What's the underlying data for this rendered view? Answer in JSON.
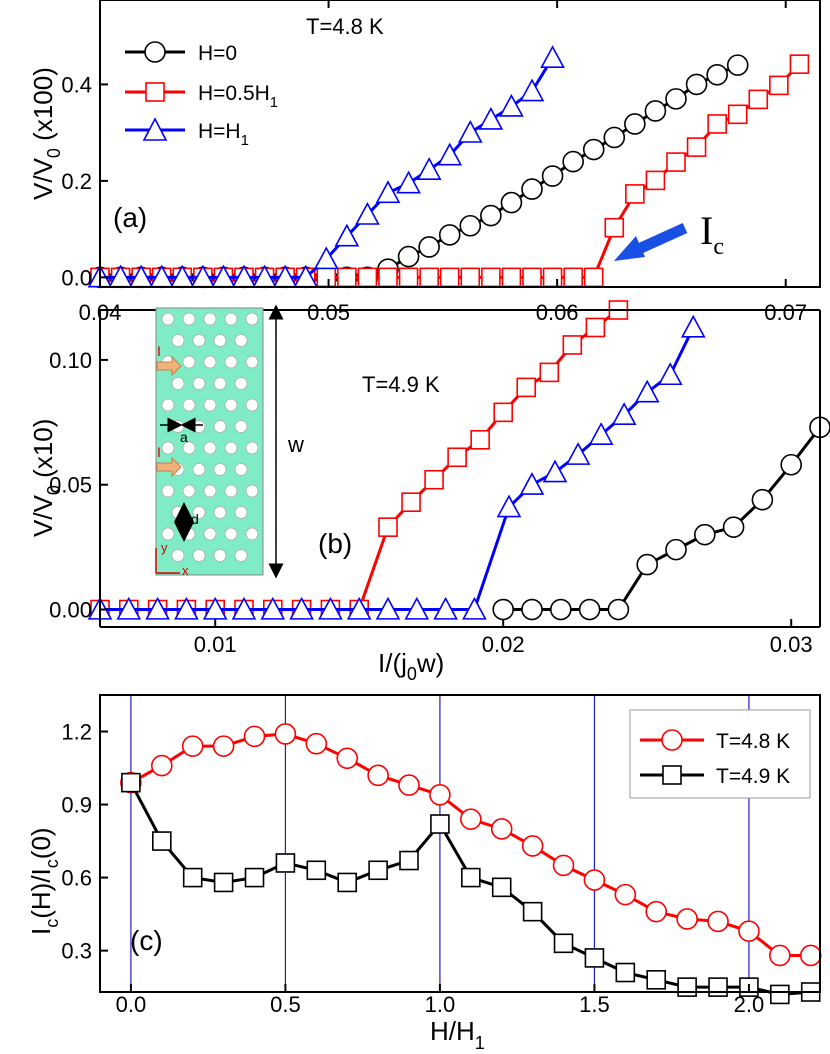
{
  "chart_data": [
    {
      "id": "panel-a",
      "type": "line",
      "panel_label": "(a)",
      "annotation": "T=4.8 K",
      "ylabel": "V/V0 (x100)",
      "xlabel": "I/(j0w)",
      "xlim": [
        0.04,
        0.0715
      ],
      "ylim": [
        -0.02,
        0.575
      ],
      "xticks": [
        0.04,
        0.05,
        0.06,
        0.07
      ],
      "xtick_labels": [
        "0.04",
        "0.05",
        "0.06",
        "0.07"
      ],
      "yticks": [
        0.0,
        0.2,
        0.4
      ],
      "ytick_labels": [
        "0.0",
        "0.2",
        "0.4"
      ],
      "arrow_label": "Ic",
      "arrow_target": {
        "x": 0.0622,
        "y": 0.0
      },
      "series": [
        {
          "name": "H=0",
          "color": "#000000",
          "marker": "circle",
          "x": [
            0.04,
            0.0409,
            0.0418,
            0.0427,
            0.0436,
            0.0445,
            0.0454,
            0.0463,
            0.0472,
            0.0481,
            0.049,
            0.0499,
            0.0508,
            0.0517,
            0.0526,
            0.0535,
            0.0544,
            0.0553,
            0.0562,
            0.0571,
            0.058,
            0.0589,
            0.0598,
            0.0607,
            0.0616,
            0.0625,
            0.0634,
            0.0643,
            0.0652,
            0.0661,
            0.067,
            0.0679
          ],
          "y": [
            0,
            0,
            0,
            0,
            0,
            0,
            0,
            0,
            0,
            0,
            0,
            0,
            0,
            0,
            0.017,
            0.043,
            0.063,
            0.088,
            0.107,
            0.128,
            0.155,
            0.183,
            0.21,
            0.24,
            0.265,
            0.29,
            0.318,
            0.345,
            0.37,
            0.4,
            0.42,
            0.44
          ]
        },
        {
          "name": "H=0.5H1",
          "color": "#ff0000",
          "marker": "square",
          "x": [
            0.04,
            0.0409,
            0.0418,
            0.0427,
            0.0436,
            0.0445,
            0.0454,
            0.0463,
            0.0472,
            0.0481,
            0.049,
            0.0499,
            0.0508,
            0.0517,
            0.0526,
            0.0535,
            0.0544,
            0.0553,
            0.0562,
            0.0571,
            0.058,
            0.0589,
            0.0598,
            0.0607,
            0.0616,
            0.0625,
            0.0634,
            0.0643,
            0.0652,
            0.0661,
            0.067,
            0.0679,
            0.0688,
            0.0697,
            0.0706
          ],
          "y": [
            0,
            0,
            0,
            0,
            0,
            0,
            0,
            0,
            0,
            0,
            0,
            0,
            0,
            0,
            0,
            0,
            0,
            0,
            0,
            0,
            0,
            0,
            0,
            0,
            0,
            0.103,
            0.173,
            0.201,
            0.239,
            0.27,
            0.318,
            0.338,
            0.369,
            0.398,
            0.442
          ]
        },
        {
          "name": "H=H1",
          "color": "#0000ff",
          "marker": "triangle",
          "x": [
            0.04,
            0.0409,
            0.0418,
            0.0427,
            0.0436,
            0.0445,
            0.0454,
            0.0463,
            0.0472,
            0.0481,
            0.049,
            0.0499,
            0.0508,
            0.0517,
            0.0526,
            0.0535,
            0.0544,
            0.0553,
            0.0562,
            0.0571,
            0.058,
            0.0589,
            0.0598
          ],
          "y": [
            0,
            0,
            0,
            0,
            0,
            0,
            0,
            0,
            0,
            0,
            0,
            0.038,
            0.085,
            0.13,
            0.175,
            0.195,
            0.223,
            0.253,
            0.3,
            0.327,
            0.354,
            0.386,
            0.455
          ]
        }
      ],
      "legend": [
        "H=0",
        "H=0.5H1",
        "H=H1"
      ]
    },
    {
      "id": "panel-b",
      "type": "line",
      "panel_label": "(b)",
      "annotation": "T=4.9 K",
      "ylabel": "V/V0 (x10)",
      "xlabel": "I/(j0w)",
      "xlim": [
        0.006,
        0.031
      ],
      "ylim": [
        -0.007,
        0.12
      ],
      "xticks": [
        0.01,
        0.02,
        0.03
      ],
      "xtick_labels": [
        "0.01",
        "0.02",
        "0.03"
      ],
      "yticks": [
        0.0,
        0.05,
        0.1
      ],
      "ytick_labels": [
        "0.00",
        "0.05",
        "0.10"
      ],
      "series": [
        {
          "name": "H=0",
          "color": "#000000",
          "marker": "circle",
          "x": [
            0.02,
            0.021,
            0.022,
            0.023,
            0.024,
            0.025,
            0.026,
            0.027,
            0.028,
            0.029,
            0.03,
            0.031
          ],
          "y": [
            0,
            0,
            0,
            0,
            0,
            0.018,
            0.024,
            0.03,
            0.033,
            0.044,
            0.058,
            0.073
          ]
        },
        {
          "name": "H=0.5H1",
          "color": "#ff0000",
          "marker": "square",
          "x": [
            0.006,
            0.007,
            0.008,
            0.009,
            0.01,
            0.011,
            0.012,
            0.013,
            0.014,
            0.015,
            0.016,
            0.0168,
            0.0176,
            0.0184,
            0.0192,
            0.02,
            0.0208,
            0.0216,
            0.0224,
            0.0232,
            0.024
          ],
          "y": [
            0,
            0,
            0,
            0,
            0,
            0,
            0,
            0,
            0,
            0,
            0.033,
            0.043,
            0.052,
            0.061,
            0.068,
            0.079,
            0.089,
            0.095,
            0.106,
            0.113,
            0.12
          ]
        },
        {
          "name": "H=H1",
          "color": "#0000ff",
          "marker": "triangle",
          "x": [
            0.006,
            0.007,
            0.008,
            0.009,
            0.01,
            0.011,
            0.012,
            0.013,
            0.014,
            0.015,
            0.016,
            0.017,
            0.018,
            0.019,
            0.0202,
            0.021,
            0.0218,
            0.0226,
            0.0234,
            0.0242,
            0.025,
            0.0258,
            0.0266
          ],
          "y": [
            0,
            0,
            0,
            0,
            0,
            0,
            0,
            0,
            0,
            0,
            0,
            0,
            0,
            0,
            0.041,
            0.05,
            0.055,
            0.062,
            0.07,
            0.078,
            0.087,
            0.094,
            0.113
          ]
        }
      ],
      "inset": {
        "label_w": "w",
        "label_a": "a",
        "label_d": "d",
        "label_I": "I",
        "label_x": "x",
        "label_y": "y",
        "fill": "#7fecc5"
      }
    },
    {
      "id": "panel-c",
      "type": "line",
      "panel_label": "(c)",
      "xlabel": "H/H1",
      "ylabel": "Ic(H)/Ic(0)",
      "xlim": [
        -0.1,
        2.23
      ],
      "ylim": [
        0.13,
        1.35
      ],
      "xticks": [
        0.0,
        0.5,
        1.0,
        1.5,
        2.0
      ],
      "xtick_labels": [
        "0.0",
        "0.5",
        "1.0",
        "1.5",
        "2.0"
      ],
      "yticks": [
        0.3,
        0.6,
        0.9,
        1.2
      ],
      "ytick_labels": [
        "0.3",
        "0.6",
        "0.9",
        "1.2"
      ],
      "vlines": [
        0.0,
        0.5,
        1.0,
        1.5,
        2.0
      ],
      "series": [
        {
          "name": "T=4.8 K",
          "color": "#ff0000",
          "marker": "circle",
          "x": [
            0.0,
            0.1,
            0.2,
            0.3,
            0.4,
            0.5,
            0.6,
            0.7,
            0.8,
            0.9,
            1.0,
            1.1,
            1.2,
            1.3,
            1.4,
            1.5,
            1.6,
            1.7,
            1.8,
            1.9,
            2.0,
            2.1,
            2.2
          ],
          "y": [
            0.99,
            1.06,
            1.14,
            1.14,
            1.18,
            1.19,
            1.15,
            1.09,
            1.02,
            0.98,
            0.94,
            0.84,
            0.8,
            0.73,
            0.65,
            0.59,
            0.53,
            0.46,
            0.43,
            0.42,
            0.38,
            0.28,
            0.28
          ]
        },
        {
          "name": "T=4.9 K",
          "color": "#000000",
          "marker": "square",
          "x": [
            0.0,
            0.1,
            0.2,
            0.3,
            0.4,
            0.5,
            0.6,
            0.7,
            0.8,
            0.9,
            1.0,
            1.1,
            1.2,
            1.3,
            1.4,
            1.5,
            1.6,
            1.7,
            1.8,
            1.9,
            2.0,
            2.1,
            2.2
          ],
          "y": [
            0.99,
            0.75,
            0.6,
            0.58,
            0.6,
            0.66,
            0.63,
            0.58,
            0.63,
            0.67,
            0.82,
            0.6,
            0.56,
            0.46,
            0.33,
            0.27,
            0.21,
            0.18,
            0.15,
            0.15,
            0.15,
            0.12,
            0.13
          ]
        }
      ],
      "legend": [
        "T=4.8 K",
        "T=4.9 K"
      ]
    }
  ]
}
